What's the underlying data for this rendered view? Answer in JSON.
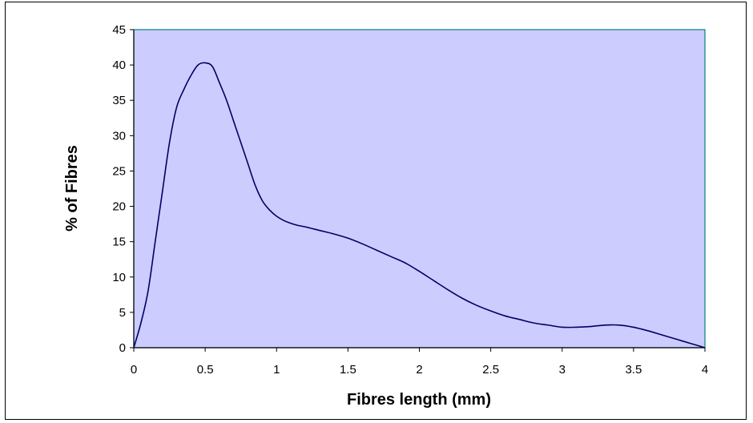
{
  "chart_data": {
    "type": "line",
    "title": "",
    "xlabel": "Fibres length (mm)",
    "ylabel": "% of Fibres",
    "xlim": [
      0,
      4
    ],
    "ylim": [
      0,
      45
    ],
    "xticks": [
      0,
      0.5,
      1,
      1.5,
      2,
      2.5,
      3,
      3.5,
      4
    ],
    "xtick_labels": [
      "0",
      "0.5",
      "1",
      "1.5",
      "2",
      "2.5",
      "3",
      "3.5",
      "4"
    ],
    "yticks": [
      0,
      5,
      10,
      15,
      20,
      25,
      30,
      35,
      40,
      45
    ],
    "ytick_labels": [
      "0",
      "5",
      "10",
      "15",
      "20",
      "25",
      "30",
      "35",
      "40",
      "45"
    ],
    "grid": false,
    "legend": "none",
    "series": [
      {
        "color": "#000066",
        "x": [
          0,
          0.05,
          0.1,
          0.15,
          0.2,
          0.25,
          0.3,
          0.35,
          0.4,
          0.45,
          0.5,
          0.55,
          0.6,
          0.65,
          0.7,
          0.75,
          0.8,
          0.85,
          0.9,
          0.95,
          1.0,
          1.05,
          1.1,
          1.15,
          1.2,
          1.3,
          1.4,
          1.5,
          1.6,
          1.7,
          1.8,
          1.9,
          2.0,
          2.1,
          2.2,
          2.3,
          2.4,
          2.5,
          2.6,
          2.7,
          2.8,
          2.9,
          3.0,
          3.1,
          3.2,
          3.3,
          3.4,
          3.5,
          3.6,
          3.7,
          3.8,
          3.9,
          4.0
        ],
        "values": [
          0,
          3.5,
          8,
          15,
          22,
          29,
          34,
          36.5,
          38.5,
          40,
          40.3,
          39.8,
          37.5,
          35,
          32,
          29,
          26,
          23,
          20.8,
          19.5,
          18.6,
          18,
          17.6,
          17.3,
          17.1,
          16.6,
          16.1,
          15.5,
          14.7,
          13.8,
          12.9,
          12.0,
          10.8,
          9.5,
          8.2,
          7.0,
          6.0,
          5.2,
          4.5,
          4.0,
          3.5,
          3.2,
          2.9,
          2.9,
          3.0,
          3.2,
          3.2,
          2.9,
          2.4,
          1.8,
          1.2,
          0.6,
          0
        ]
      }
    ],
    "colors": {
      "plot_background": "#ccccff",
      "plot_border": "#008080",
      "line": "#000066",
      "axis": "#000000"
    }
  }
}
